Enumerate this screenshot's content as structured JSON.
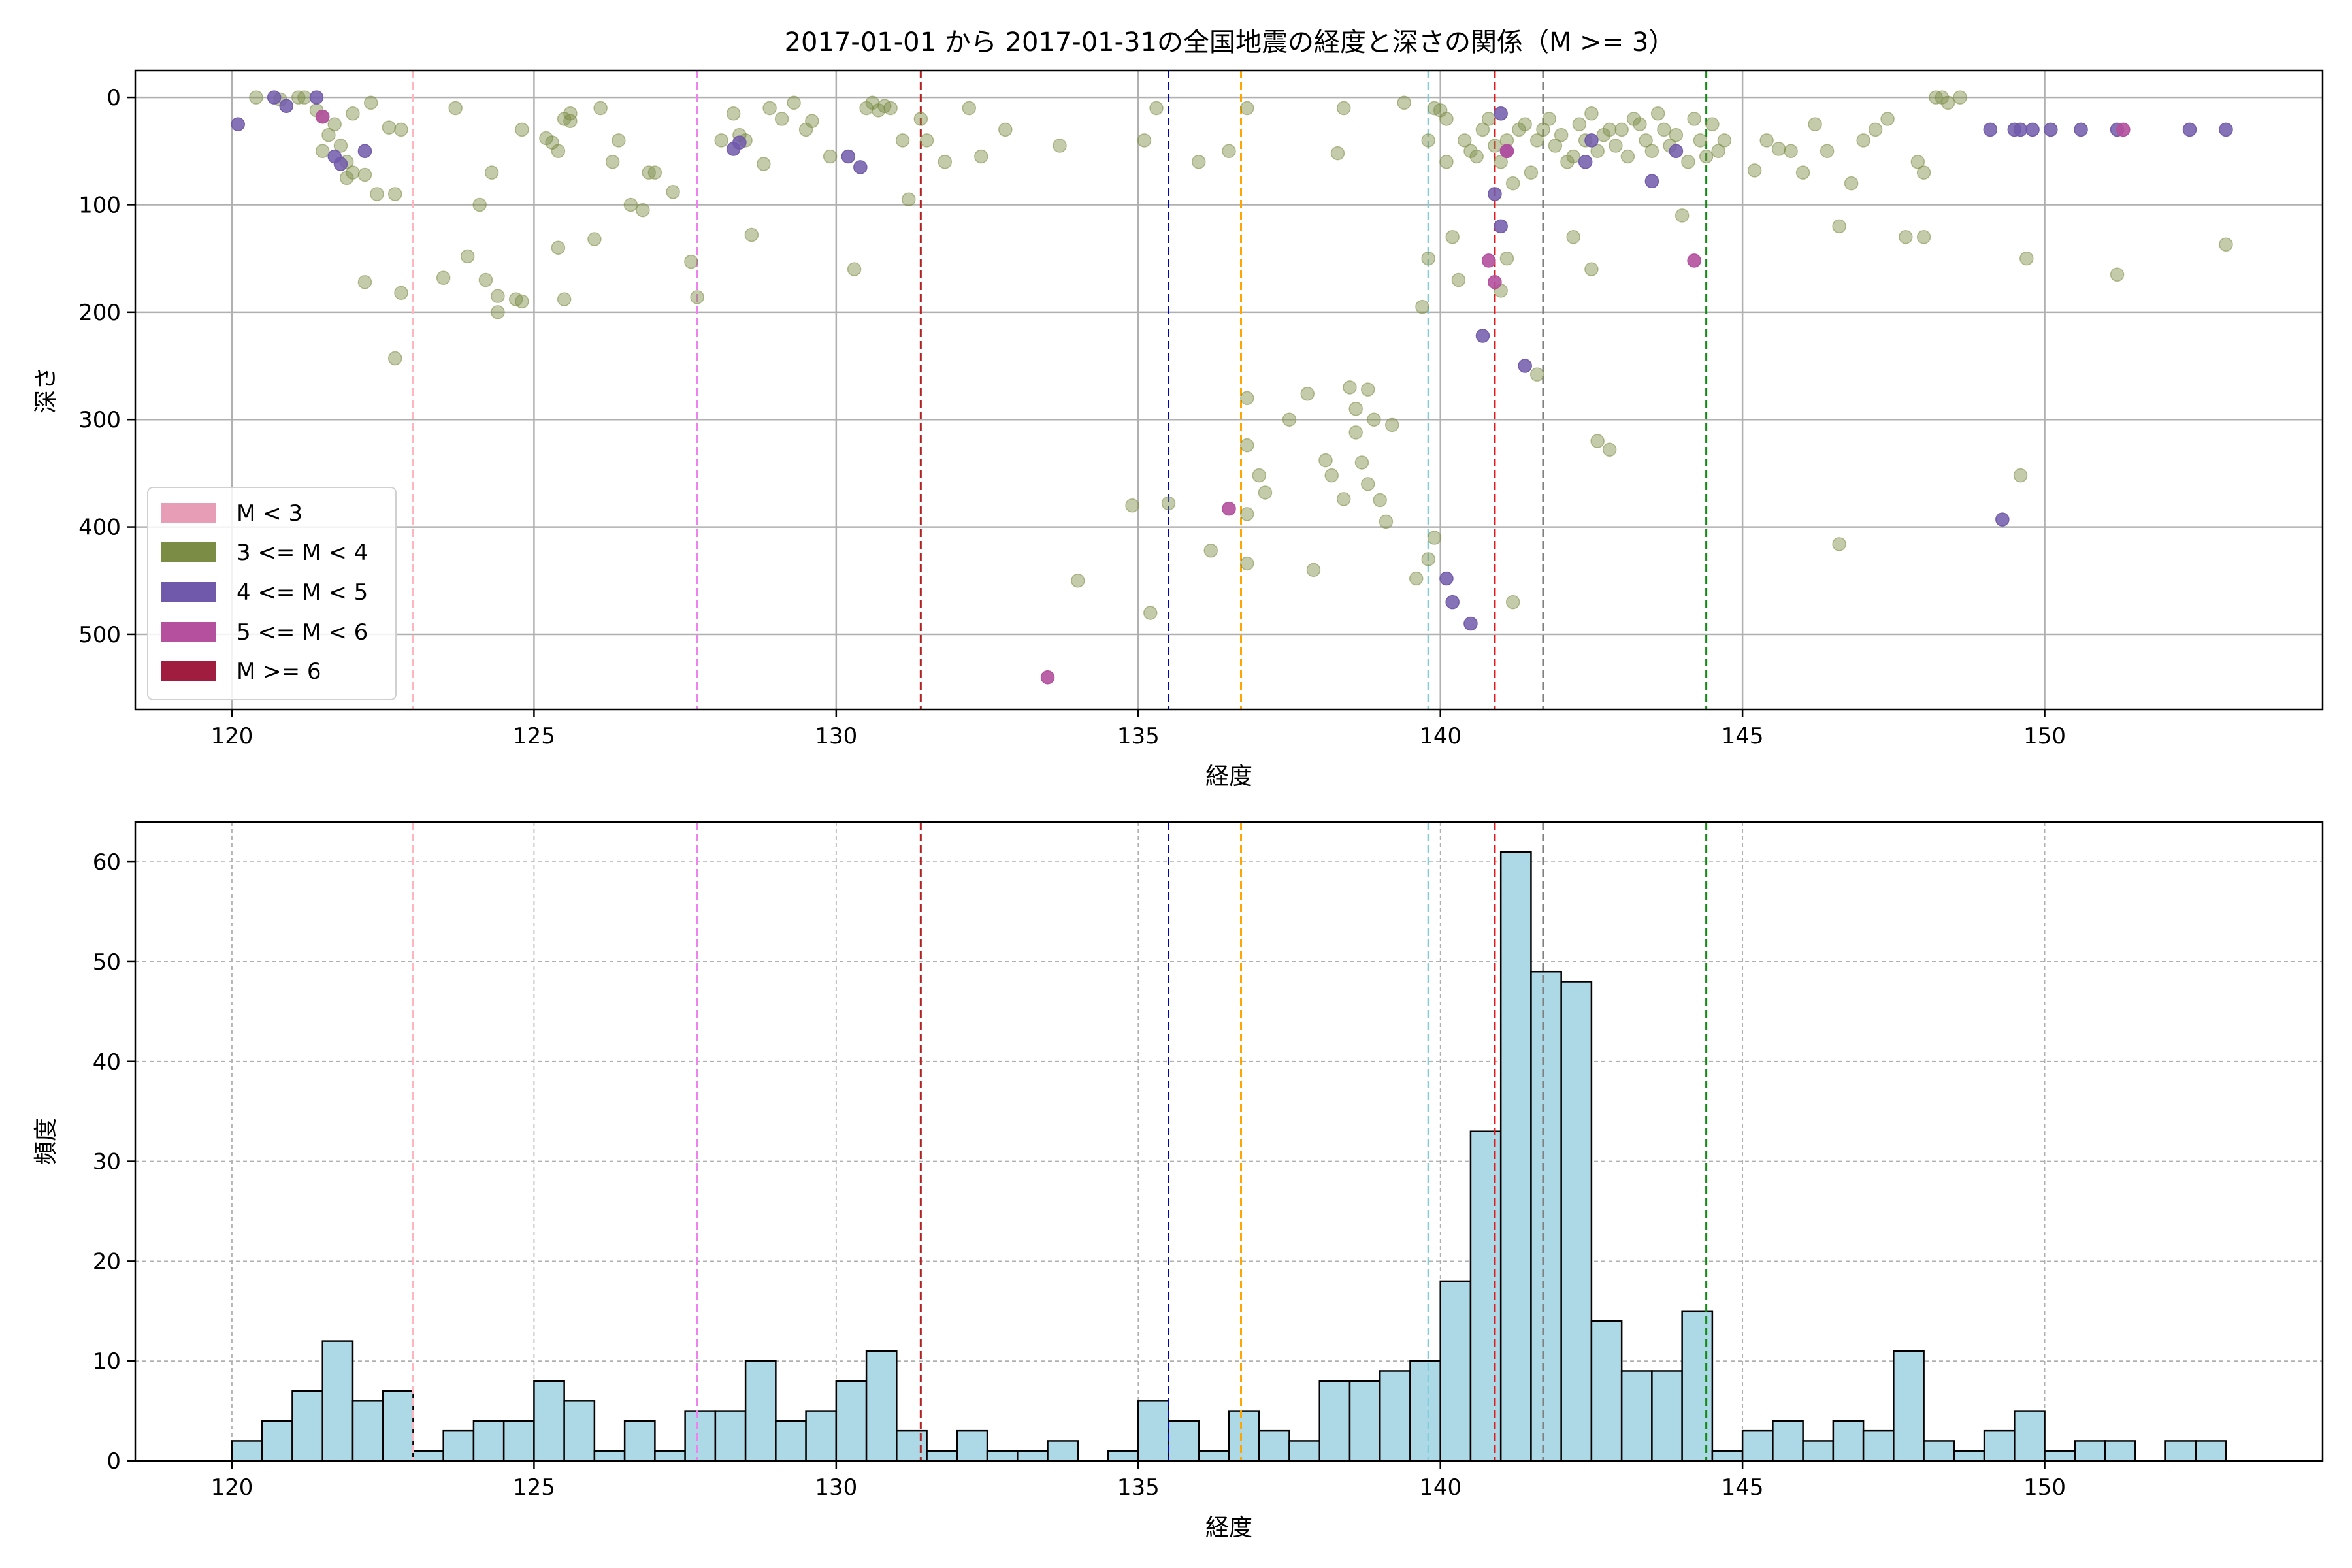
{
  "title": "2017-01-01 から 2017-01-31の全国地震の経度と深さの関係（M >= 3）",
  "colors": {
    "m_lt3": "#e89db6",
    "m_3_4": "#7b8c44",
    "m_4_5": "#7059aa",
    "m_5_6": "#b4509e",
    "m_ge6": "#a11d3f",
    "hist_fill": "#add8e6"
  },
  "chart_data": [
    {
      "type": "scatter",
      "xlabel": "経度",
      "ylabel": "深さ",
      "xlim": [
        118.4,
        154.6
      ],
      "ylim": [
        570,
        -25
      ],
      "y_inverted": true,
      "xticks": [
        120,
        125,
        130,
        135,
        140,
        145,
        150
      ],
      "yticks": [
        0,
        100,
        200,
        300,
        400,
        500
      ],
      "grid": true,
      "legend_position": "lower-left",
      "legend": [
        "M < 3",
        "3 <= M < 4",
        "4 <= M < 5",
        "5 <= M < 6",
        "M >= 6"
      ],
      "vlines": [
        {
          "x": 123.0,
          "color": "#ffb6c1"
        },
        {
          "x": 127.7,
          "color": "#ee82ee"
        },
        {
          "x": 131.4,
          "color": "#b22222"
        },
        {
          "x": 135.5,
          "color": "#0000cd"
        },
        {
          "x": 136.7,
          "color": "#ffa500"
        },
        {
          "x": 139.8,
          "color": "#7ecfd8"
        },
        {
          "x": 140.9,
          "color": "#e31a1c"
        },
        {
          "x": 141.7,
          "color": "#808080"
        },
        {
          "x": 144.4,
          "color": "#138a13"
        }
      ],
      "series": [
        {
          "name": "3 <= M < 4",
          "points": [
            [
              120.4,
              0
            ],
            [
              120.8,
              2
            ],
            [
              121.1,
              0
            ],
            [
              121.2,
              0
            ],
            [
              121.4,
              12
            ],
            [
              121.5,
              18
            ],
            [
              121.6,
              35
            ],
            [
              121.7,
              25
            ],
            [
              121.5,
              50
            ],
            [
              121.8,
              45
            ],
            [
              121.9,
              60
            ],
            [
              122.0,
              70
            ],
            [
              121.9,
              75
            ],
            [
              122.2,
              72
            ],
            [
              122.0,
              15
            ],
            [
              122.3,
              5
            ],
            [
              122.6,
              28
            ],
            [
              122.8,
              30
            ],
            [
              122.7,
              90
            ],
            [
              122.4,
              90
            ],
            [
              122.2,
              172
            ],
            [
              122.8,
              182
            ],
            [
              122.7,
              243
            ],
            [
              123.7,
              10
            ],
            [
              124.1,
              100
            ],
            [
              124.3,
              70
            ],
            [
              123.9,
              148
            ],
            [
              123.5,
              168
            ],
            [
              124.2,
              170
            ],
            [
              124.4,
              185
            ],
            [
              124.4,
              200
            ],
            [
              124.7,
              188
            ],
            [
              124.8,
              190
            ],
            [
              124.8,
              30
            ],
            [
              125.2,
              38
            ],
            [
              125.3,
              42
            ],
            [
              125.4,
              50
            ],
            [
              125.5,
              20
            ],
            [
              125.6,
              15
            ],
            [
              125.6,
              22
            ],
            [
              125.4,
              140
            ],
            [
              125.5,
              188
            ],
            [
              126.0,
              132
            ],
            [
              126.1,
              10
            ],
            [
              126.3,
              60
            ],
            [
              126.4,
              40
            ],
            [
              126.6,
              100
            ],
            [
              126.8,
              105
            ],
            [
              126.9,
              70
            ],
            [
              127.0,
              70
            ],
            [
              127.3,
              88
            ],
            [
              127.6,
              153
            ],
            [
              127.7,
              186
            ],
            [
              128.1,
              40
            ],
            [
              128.4,
              35
            ],
            [
              128.5,
              40
            ],
            [
              128.3,
              15
            ],
            [
              128.6,
              128
            ],
            [
              128.8,
              62
            ],
            [
              128.9,
              10
            ],
            [
              129.1,
              20
            ],
            [
              129.3,
              5
            ],
            [
              129.5,
              30
            ],
            [
              129.6,
              22
            ],
            [
              129.9,
              55
            ],
            [
              130.3,
              160
            ],
            [
              130.5,
              10
            ],
            [
              130.6,
              5
            ],
            [
              130.7,
              12
            ],
            [
              130.8,
              8
            ],
            [
              130.9,
              10
            ],
            [
              131.1,
              40
            ],
            [
              131.2,
              95
            ],
            [
              131.4,
              20
            ],
            [
              131.5,
              40
            ],
            [
              131.8,
              60
            ],
            [
              132.2,
              10
            ],
            [
              132.4,
              55
            ],
            [
              132.8,
              30
            ],
            [
              133.7,
              45
            ],
            [
              134.0,
              450
            ],
            [
              134.9,
              380
            ],
            [
              135.1,
              40
            ],
            [
              135.2,
              480
            ],
            [
              135.3,
              10
            ],
            [
              135.5,
              378
            ],
            [
              136.0,
              60
            ],
            [
              136.2,
              422
            ],
            [
              136.5,
              50
            ],
            [
              136.8,
              10
            ],
            [
              136.8,
              280
            ],
            [
              136.8,
              324
            ],
            [
              136.8,
              388
            ],
            [
              136.8,
              434
            ],
            [
              137.0,
              352
            ],
            [
              137.1,
              368
            ],
            [
              137.5,
              300
            ],
            [
              137.8,
              276
            ],
            [
              137.9,
              440
            ],
            [
              138.1,
              338
            ],
            [
              138.2,
              352
            ],
            [
              138.3,
              52
            ],
            [
              138.4,
              10
            ],
            [
              138.4,
              374
            ],
            [
              138.5,
              270
            ],
            [
              138.6,
              290
            ],
            [
              138.6,
              312
            ],
            [
              138.7,
              340
            ],
            [
              138.8,
              360
            ],
            [
              138.8,
              272
            ],
            [
              138.9,
              300
            ],
            [
              139.0,
              375
            ],
            [
              139.1,
              395
            ],
            [
              139.2,
              305
            ],
            [
              139.4,
              5
            ],
            [
              139.6,
              448
            ],
            [
              139.8,
              430
            ],
            [
              139.8,
              40
            ],
            [
              139.8,
              150
            ],
            [
              139.9,
              410
            ],
            [
              139.7,
              195
            ],
            [
              139.9,
              10
            ],
            [
              140.0,
              12
            ],
            [
              140.1,
              20
            ],
            [
              140.1,
              60
            ],
            [
              140.2,
              130
            ],
            [
              140.3,
              170
            ],
            [
              140.4,
              40
            ],
            [
              140.5,
              50
            ],
            [
              140.6,
              55
            ],
            [
              140.7,
              30
            ],
            [
              140.8,
              20
            ],
            [
              140.9,
              45
            ],
            [
              141.0,
              60
            ],
            [
              141.1,
              40
            ],
            [
              141.2,
              80
            ],
            [
              141.3,
              30
            ],
            [
              141.4,
              25
            ],
            [
              141.5,
              70
            ],
            [
              141.6,
              40
            ],
            [
              141.7,
              30
            ],
            [
              141.8,
              20
            ],
            [
              141.9,
              45
            ],
            [
              142.0,
              35
            ],
            [
              142.1,
              60
            ],
            [
              142.2,
              55
            ],
            [
              142.3,
              25
            ],
            [
              142.4,
              40
            ],
            [
              142.5,
              15
            ],
            [
              142.6,
              50
            ],
            [
              142.7,
              35
            ],
            [
              142.8,
              30
            ],
            [
              142.9,
              45
            ],
            [
              143.0,
              30
            ],
            [
              143.1,
              55
            ],
            [
              143.2,
              20
            ],
            [
              143.3,
              25
            ],
            [
              143.4,
              40
            ],
            [
              143.5,
              50
            ],
            [
              143.6,
              15
            ],
            [
              143.7,
              30
            ],
            [
              143.8,
              45
            ],
            [
              143.9,
              35
            ],
            [
              144.0,
              110
            ],
            [
              144.1,
              60
            ],
            [
              144.2,
              20
            ],
            [
              144.3,
              40
            ],
            [
              144.4,
              55
            ],
            [
              144.5,
              25
            ],
            [
              144.6,
              50
            ],
            [
              144.7,
              40
            ],
            [
              141.6,
              258
            ],
            [
              142.6,
              320
            ],
            [
              142.8,
              328
            ],
            [
              142.2,
              130
            ],
            [
              141.2,
              470
            ],
            [
              141.1,
              150
            ],
            [
              141.0,
              180
            ],
            [
              142.5,
              160
            ],
            [
              145.2,
              68
            ],
            [
              145.4,
              40
            ],
            [
              145.6,
              48
            ],
            [
              145.8,
              50
            ],
            [
              146.0,
              70
            ],
            [
              146.2,
              25
            ],
            [
              146.4,
              50
            ],
            [
              146.6,
              120
            ],
            [
              146.8,
              80
            ],
            [
              147.0,
              40
            ],
            [
              147.2,
              30
            ],
            [
              147.4,
              20
            ],
            [
              147.7,
              130
            ],
            [
              147.9,
              60
            ],
            [
              148.0,
              70
            ],
            [
              148.2,
              0
            ],
            [
              148.3,
              0
            ],
            [
              148.4,
              5
            ],
            [
              148.0,
              130
            ],
            [
              148.6,
              0
            ],
            [
              149.7,
              150
            ],
            [
              149.6,
              352
            ],
            [
              151.2,
              165
            ],
            [
              153.0,
              137
            ],
            [
              146.6,
              416
            ]
          ]
        },
        {
          "name": "4 <= M < 5",
          "points": [
            [
              120.1,
              25
            ],
            [
              120.7,
              0
            ],
            [
              120.9,
              8
            ],
            [
              121.4,
              0
            ],
            [
              121.7,
              55
            ],
            [
              121.8,
              62
            ],
            [
              122.2,
              50
            ],
            [
              128.3,
              48
            ],
            [
              128.4,
              42
            ],
            [
              130.2,
              55
            ],
            [
              130.4,
              65
            ],
            [
              140.1,
              448
            ],
            [
              140.2,
              470
            ],
            [
              140.5,
              490
            ],
            [
              140.7,
              222
            ],
            [
              140.9,
              90
            ],
            [
              141.0,
              120
            ],
            [
              141.4,
              250
            ],
            [
              141.1,
              50
            ],
            [
              142.5,
              40
            ],
            [
              143.5,
              78
            ],
            [
              149.1,
              30
            ],
            [
              149.5,
              30
            ],
            [
              149.6,
              30
            ],
            [
              149.8,
              30
            ],
            [
              150.1,
              30
            ],
            [
              150.6,
              30
            ],
            [
              151.2,
              30
            ],
            [
              152.4,
              30
            ],
            [
              153.0,
              30
            ],
            [
              149.3,
              393
            ],
            [
              141.0,
              15
            ],
            [
              142.4,
              60
            ],
            [
              143.9,
              50
            ]
          ]
        },
        {
          "name": "5 <= M < 6",
          "points": [
            [
              121.5,
              18
            ],
            [
              133.5,
              540
            ],
            [
              136.5,
              383
            ],
            [
              140.8,
              152
            ],
            [
              140.9,
              172
            ],
            [
              144.2,
              152
            ],
            [
              151.3,
              30
            ],
            [
              141.1,
              50
            ]
          ]
        }
      ]
    },
    {
      "type": "bar",
      "subtype": "histogram",
      "xlabel": "経度",
      "ylabel": "頻度",
      "xlim": [
        118.4,
        154.6
      ],
      "ylim": [
        0,
        64
      ],
      "xticks": [
        120,
        125,
        130,
        135,
        140,
        145,
        150
      ],
      "yticks": [
        0,
        10,
        20,
        30,
        40,
        50,
        60
      ],
      "grid": true,
      "bin_start": 120,
      "bin_width": 0.5,
      "values": [
        2,
        4,
        7,
        12,
        6,
        7,
        1,
        3,
        4,
        4,
        8,
        6,
        1,
        4,
        1,
        5,
        5,
        10,
        4,
        5,
        8,
        11,
        3,
        1,
        3,
        1,
        1,
        2,
        0,
        1,
        6,
        4,
        1,
        5,
        3,
        2,
        8,
        8,
        9,
        10,
        18,
        33,
        61,
        49,
        48,
        14,
        9,
        9,
        15,
        1,
        3,
        4,
        2,
        4,
        3,
        11,
        2,
        1,
        3,
        5,
        1,
        2,
        2,
        0,
        2,
        2
      ]
    }
  ]
}
